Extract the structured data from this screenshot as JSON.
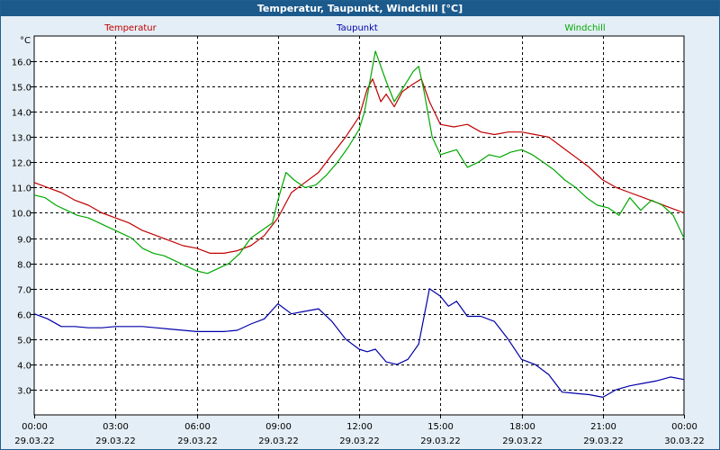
{
  "window_title": "Temperatur, Taupunkt, Windchill [°C]",
  "chart_data": {
    "type": "line",
    "title": "Temperatur, Taupunkt, Windchill [°C]",
    "ylabel": "°C",
    "xlabel": "",
    "ylim": [
      2.0,
      17.0
    ],
    "xlim": [
      0,
      24
    ],
    "grid": true,
    "legend_placement": "top",
    "y_ticks": [
      3.0,
      4.0,
      5.0,
      6.0,
      7.0,
      8.0,
      9.0,
      10.0,
      11.0,
      12.0,
      13.0,
      14.0,
      15.0,
      16.0
    ],
    "y_tick_labels": [
      "3.0",
      "4.0",
      "5.0",
      "6.0",
      "7.0",
      "8.0",
      "9.0",
      "10.0",
      "11.0",
      "12.0",
      "13.0",
      "14.0",
      "15.0",
      "16.0"
    ],
    "x_ticks": [
      {
        "time": "00:00",
        "date": "29.03.22"
      },
      {
        "time": "03:00",
        "date": "29.03.22"
      },
      {
        "time": "06:00",
        "date": "29.03.22"
      },
      {
        "time": "09:00",
        "date": "29.03.22"
      },
      {
        "time": "12:00",
        "date": "29.03.22"
      },
      {
        "time": "15:00",
        "date": "29.03.22"
      },
      {
        "time": "18:00",
        "date": "29.03.22"
      },
      {
        "time": "21:00",
        "date": "29.03.22"
      },
      {
        "time": "00:00",
        "date": "30.03.22"
      }
    ],
    "series": [
      {
        "name": "Temperatur",
        "color": "#c00000",
        "x": [
          0,
          0.5,
          1,
          1.5,
          2,
          2.5,
          3,
          3.5,
          4,
          4.5,
          5,
          5.5,
          6,
          6.5,
          7,
          7.5,
          8,
          8.5,
          9,
          9.5,
          10,
          10.5,
          11,
          11.5,
          12,
          12.3,
          12.5,
          12.8,
          13,
          13.3,
          13.6,
          14,
          14.3,
          14.6,
          15,
          15.5,
          16,
          16.5,
          17,
          17.5,
          18,
          18.5,
          19,
          19.5,
          20,
          20.5,
          21,
          21.5,
          22,
          22.5,
          23,
          23.5,
          24
        ],
        "values": [
          11.2,
          11.0,
          10.8,
          10.5,
          10.3,
          10.0,
          9.8,
          9.6,
          9.3,
          9.1,
          8.9,
          8.7,
          8.6,
          8.4,
          8.4,
          8.5,
          8.7,
          9.1,
          9.8,
          10.8,
          11.2,
          11.6,
          12.3,
          13.0,
          13.8,
          14.9,
          15.3,
          14.4,
          14.7,
          14.2,
          14.8,
          15.1,
          15.3,
          14.4,
          13.5,
          13.4,
          13.5,
          13.2,
          13.1,
          13.2,
          13.2,
          13.1,
          13.0,
          12.6,
          12.2,
          11.8,
          11.3,
          11.0,
          10.8,
          10.6,
          10.4,
          10.2,
          10.0
        ]
      },
      {
        "name": "Taupunkt",
        "color": "#0000a8",
        "x": [
          0,
          0.5,
          1,
          1.5,
          2,
          2.5,
          3,
          3.5,
          4,
          4.5,
          5,
          5.5,
          6,
          6.5,
          7,
          7.5,
          8,
          8.5,
          9,
          9.5,
          10,
          10.5,
          11,
          11.5,
          12,
          12.3,
          12.6,
          13,
          13.4,
          13.8,
          14.2,
          14.6,
          15,
          15.3,
          15.6,
          16,
          16.5,
          17,
          17.5,
          18,
          18.5,
          19,
          19.5,
          20,
          20.5,
          21,
          21.5,
          22,
          22.5,
          23,
          23.5,
          24
        ],
        "values": [
          6.0,
          5.8,
          5.5,
          5.5,
          5.45,
          5.45,
          5.5,
          5.5,
          5.5,
          5.45,
          5.4,
          5.35,
          5.3,
          5.3,
          5.3,
          5.35,
          5.6,
          5.8,
          6.4,
          6.0,
          6.1,
          6.2,
          5.7,
          5.0,
          4.6,
          4.5,
          4.6,
          4.1,
          4.0,
          4.2,
          4.8,
          7.0,
          6.7,
          6.3,
          6.5,
          5.9,
          5.9,
          5.7,
          5.0,
          4.2,
          4.0,
          3.6,
          2.9,
          2.85,
          2.8,
          2.7,
          3.0,
          3.15,
          3.25,
          3.35,
          3.5,
          3.4
        ]
      },
      {
        "name": "Windchill",
        "color": "#00a800",
        "x": [
          0,
          0.4,
          0.8,
          1.2,
          1.6,
          2,
          2.4,
          2.8,
          3.2,
          3.6,
          4,
          4.4,
          4.8,
          5.2,
          5.6,
          6,
          6.4,
          6.8,
          7.2,
          7.6,
          8,
          8.4,
          8.8,
          9,
          9.3,
          9.6,
          10,
          10.4,
          10.8,
          11.2,
          11.6,
          12,
          12.2,
          12.4,
          12.6,
          12.8,
          13,
          13.3,
          13.6,
          14,
          14.2,
          14.4,
          14.7,
          15,
          15.3,
          15.6,
          16,
          16.4,
          16.8,
          17.2,
          17.6,
          18,
          18.4,
          18.8,
          19.2,
          19.6,
          20,
          20.4,
          20.8,
          21.2,
          21.6,
          22,
          22.4,
          22.8,
          23.2,
          23.6,
          24
        ],
        "values": [
          10.7,
          10.6,
          10.3,
          10.1,
          9.9,
          9.8,
          9.6,
          9.4,
          9.2,
          9.0,
          8.6,
          8.4,
          8.3,
          8.1,
          7.9,
          7.7,
          7.6,
          7.8,
          8.0,
          8.4,
          9.0,
          9.3,
          9.6,
          10.5,
          11.6,
          11.3,
          11.0,
          11.1,
          11.5,
          12.0,
          12.6,
          13.3,
          14.0,
          15.2,
          16.4,
          15.8,
          15.2,
          14.4,
          14.9,
          15.6,
          15.8,
          14.8,
          13.0,
          12.3,
          12.4,
          12.5,
          11.8,
          12.0,
          12.3,
          12.2,
          12.4,
          12.5,
          12.3,
          12.0,
          11.7,
          11.3,
          11.0,
          10.6,
          10.3,
          10.2,
          9.9,
          10.6,
          10.1,
          10.5,
          10.3,
          9.9,
          9.0
        ]
      }
    ]
  }
}
